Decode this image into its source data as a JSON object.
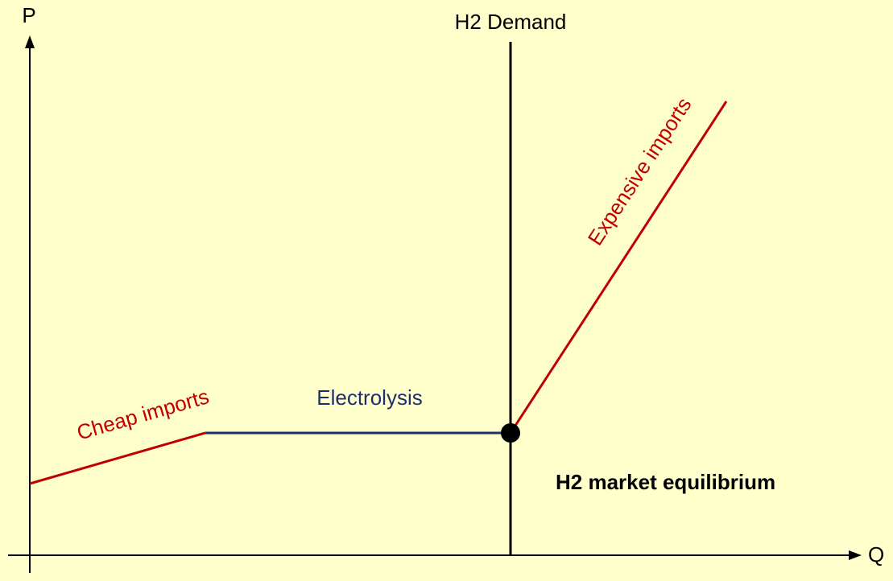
{
  "axes": {
    "y_label": "P",
    "x_label": "Q"
  },
  "demand": {
    "label": "H2 Demand"
  },
  "supply": {
    "segments": [
      {
        "label": "Cheap imports"
      },
      {
        "label": "Electrolysis"
      },
      {
        "label": "Expensive imports"
      }
    ]
  },
  "equilibrium": {
    "label": "H2 market equilibrium"
  }
}
